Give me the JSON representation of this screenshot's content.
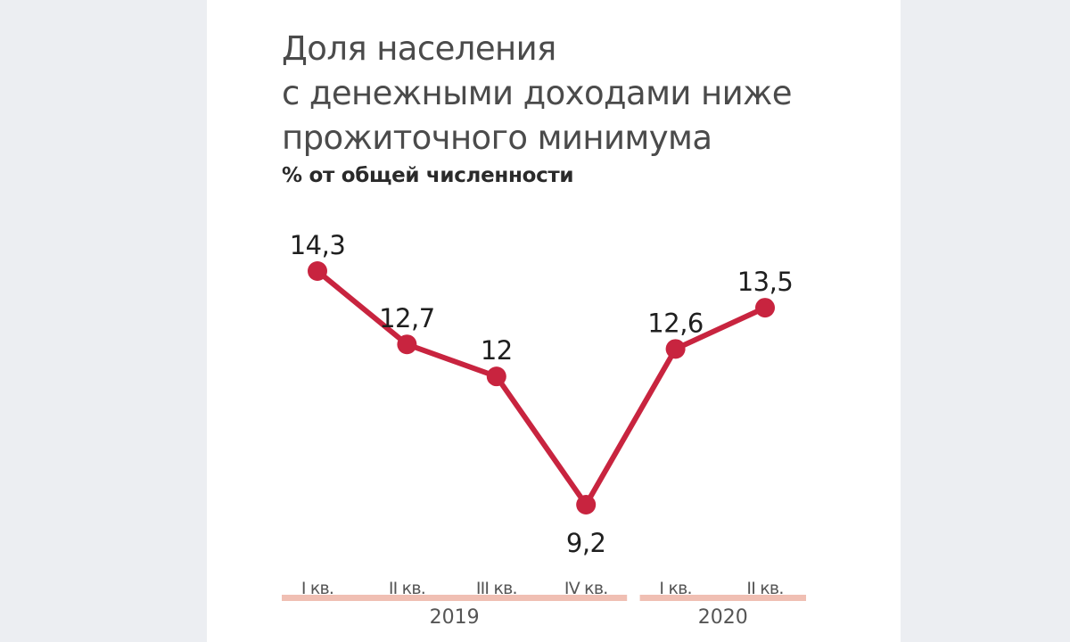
{
  "colors": {
    "line": "#c8243f",
    "year_bar": "#f0bfb3",
    "text": "#1f1f1f"
  },
  "chart_data": {
    "type": "line",
    "title": "Доля населения с денежными доходами ниже прожиточного минимума",
    "title_lines": [
      "Доля населения",
      "с денежными доходами ниже",
      "прожиточного минимума"
    ],
    "subtitle": "% от общей численности",
    "categories": [
      "I кв.",
      "II кв.",
      "III кв.",
      "IV кв.",
      "I кв.",
      "II кв."
    ],
    "groups": [
      {
        "label": "2019",
        "categories": [
          "I кв.",
          "II кв.",
          "III кв.",
          "IV кв."
        ]
      },
      {
        "label": "2020",
        "categories": [
          "I кв.",
          "II кв."
        ]
      }
    ],
    "values": [
      14.3,
      12.7,
      12,
      9.2,
      12.6,
      13.5
    ],
    "value_labels": [
      "14,3",
      "12,7",
      "12",
      "9,2",
      "12,6",
      "13,5"
    ],
    "ylim": [
      9.2,
      14.3
    ],
    "grid": false,
    "legend": "none"
  }
}
